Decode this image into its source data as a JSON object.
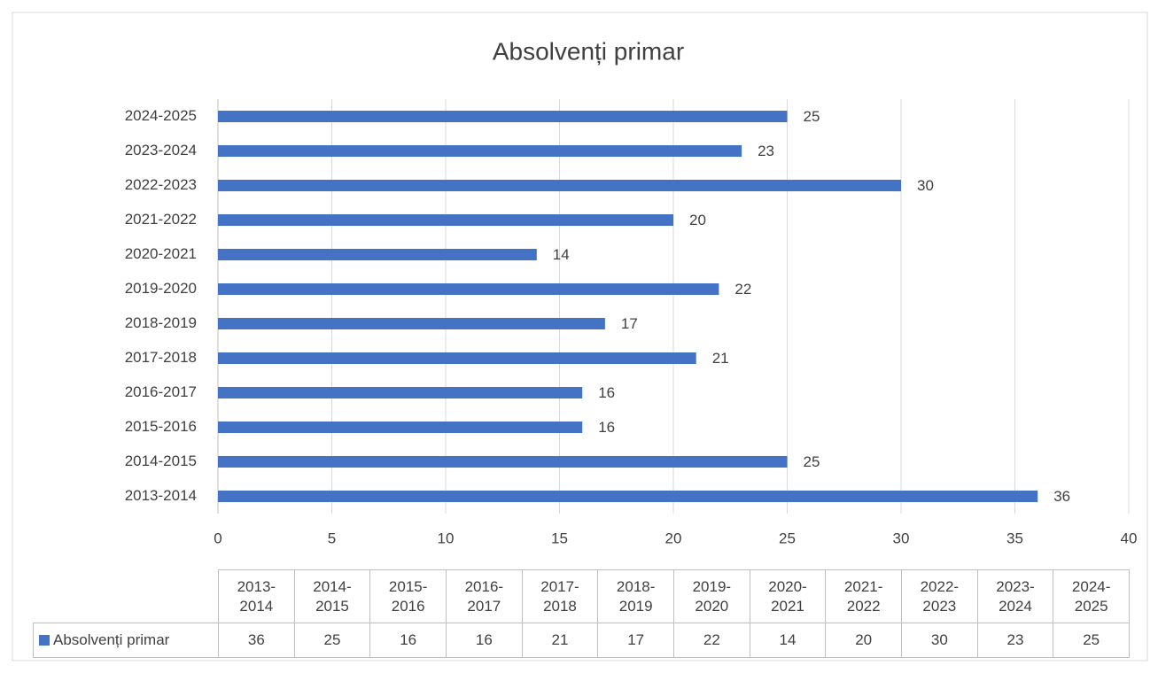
{
  "chart_data": {
    "type": "bar",
    "orientation": "horizontal",
    "title": "Absolvenți primar",
    "categories": [
      "2013-2014",
      "2014-2015",
      "2015-2016",
      "2016-2017",
      "2017-2018",
      "2018-2019",
      "2019-2020",
      "2020-2021",
      "2021-2022",
      "2022-2023",
      "2023-2024",
      "2024-2025"
    ],
    "series": [
      {
        "name": "Absolvenți primar",
        "color": "#4472c4",
        "values": [
          36,
          25,
          16,
          16,
          21,
          17,
          22,
          14,
          20,
          30,
          23,
          25
        ]
      }
    ],
    "xlim": [
      0,
      40
    ],
    "xticks": [
      0,
      5,
      10,
      15,
      20,
      25,
      30,
      35,
      40
    ],
    "grid": true,
    "data_table": true
  }
}
